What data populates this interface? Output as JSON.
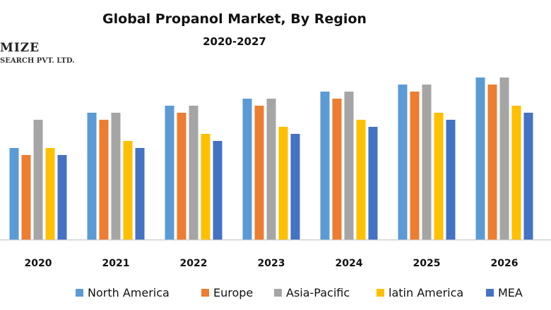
{
  "chart_data": {
    "type": "bar",
    "title": "Global Propanol Market, By Region",
    "subtitle": "2020-2027",
    "watermark": [
      "MIZE",
      "SEARCH PVT. LTD."
    ],
    "categories": [
      "2020",
      "2021",
      "2022",
      "2023",
      "2024",
      "2025",
      "2026"
    ],
    "series": [
      {
        "name": "North America",
        "color": "#5B9BD5",
        "values": [
          6.5,
          9,
          9.5,
          10,
          10.5,
          11,
          11.5
        ]
      },
      {
        "name": "Europe",
        "color": "#ED7D31",
        "values": [
          6,
          8.5,
          9,
          9.5,
          10,
          10.5,
          11
        ]
      },
      {
        "name": "Asia-Pacific",
        "color": "#A5A5A5",
        "values": [
          8.5,
          9,
          9.5,
          10,
          10.5,
          11,
          11.5
        ]
      },
      {
        "name": "latin America",
        "color": "#FFC000",
        "values": [
          6.5,
          7,
          7.5,
          8,
          8.5,
          9,
          9.5
        ]
      },
      {
        "name": "MEA",
        "color": "#4472C4",
        "values": [
          6,
          6.5,
          7,
          7.5,
          8,
          8.5,
          9
        ]
      }
    ],
    "ylim": [
      0,
      12
    ],
    "xlabel": "",
    "ylabel": "",
    "grid": false,
    "legend_position": "bottom"
  }
}
